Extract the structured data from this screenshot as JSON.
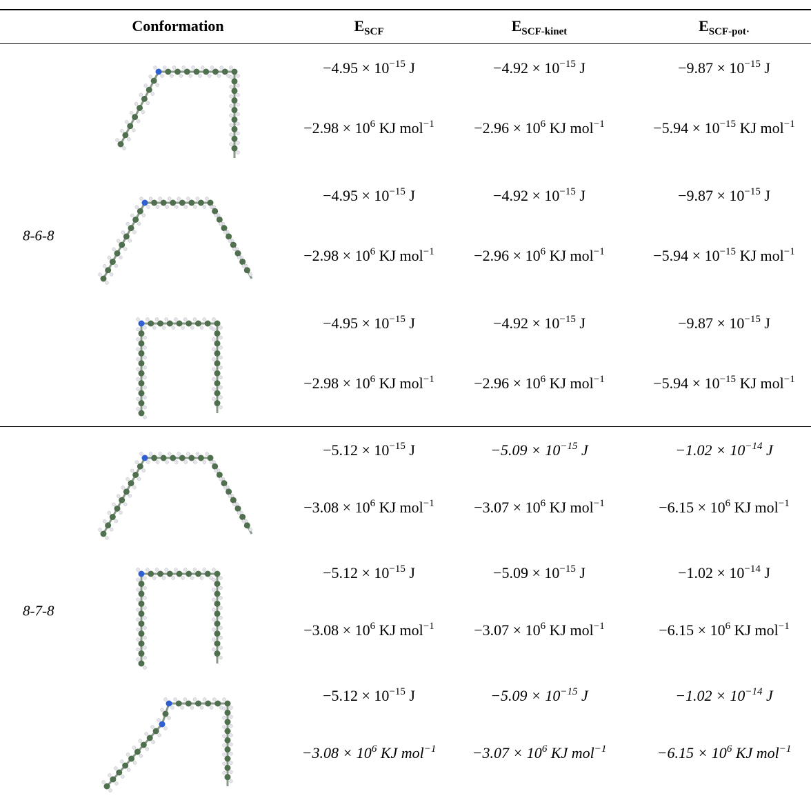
{
  "header": [
    {
      "main": "Conformation"
    },
    {
      "main": "E",
      "sub": "SCF"
    },
    {
      "main": "E",
      "sub": "SCF-kinet"
    },
    {
      "main": "E",
      "sub": "SCF-pot·"
    }
  ],
  "groups": [
    {
      "label": "8-6-8",
      "conformations": [
        {
          "rows": [
            [
              {
                "base": "−4.95 × 10",
                "exp": "−15",
                "unit": "J"
              },
              {
                "base": "−4.92 × 10",
                "exp": "−15",
                "unit": "J"
              },
              {
                "base": "−9.87 × 10",
                "exp": "−15",
                "unit": "J"
              }
            ],
            [
              {
                "base": "−2.98 × 10",
                "exp": "6",
                "unit": "KJ mol",
                "unit_exp": "−1"
              },
              {
                "base": "−2.96 × 10",
                "exp": "6",
                "unit": "KJ mol",
                "unit_exp": "−1"
              },
              {
                "base": "−5.94 × 10",
                "exp": "−15",
                "unit": "KJ mol",
                "unit_exp": "−1"
              }
            ]
          ]
        },
        {
          "rows": [
            [
              {
                "base": "−4.95 × 10",
                "exp": "−15",
                "unit": "J"
              },
              {
                "base": "−4.92 × 10",
                "exp": "−15",
                "unit": "J"
              },
              {
                "base": "−9.87 × 10",
                "exp": "−15",
                "unit": "J"
              }
            ],
            [
              {
                "base": "−2.98 × 10",
                "exp": "6",
                "unit": "KJ mol",
                "unit_exp": "−1"
              },
              {
                "base": "−2.96 × 10",
                "exp": "6",
                "unit": "KJ mol",
                "unit_exp": "−1"
              },
              {
                "base": "−5.94 × 10",
                "exp": "−15",
                "unit": "KJ mol",
                "unit_exp": "−1"
              }
            ]
          ]
        },
        {
          "rows": [
            [
              {
                "base": "−4.95 × 10",
                "exp": "−15",
                "unit": "J"
              },
              {
                "base": "−4.92 × 10",
                "exp": "−15",
                "unit": "J"
              },
              {
                "base": "−9.87 × 10",
                "exp": "−15",
                "unit": "J"
              }
            ],
            [
              {
                "base": "−2.98 × 10",
                "exp": "6",
                "unit": "KJ mol",
                "unit_exp": "−1"
              },
              {
                "base": "−2.96 × 10",
                "exp": "6",
                "unit": "KJ mol",
                "unit_exp": "−1"
              },
              {
                "base": "−5.94 × 10",
                "exp": "−15",
                "unit": "KJ mol",
                "unit_exp": "−1"
              }
            ]
          ]
        }
      ]
    },
    {
      "label": "8-7-8",
      "conformations": [
        {
          "rows": [
            [
              {
                "base": "−5.12 × 10",
                "exp": "−15",
                "unit": "J"
              },
              {
                "base": "−5.09 × 10",
                "exp": "−15",
                "unit": "J",
                "italic": true
              },
              {
                "base": "−1.02 × 10",
                "exp": "−14",
                "unit": "J",
                "italic": true
              }
            ],
            [
              {
                "base": "−3.08 × 10",
                "exp": "6",
                "unit": "KJ mol",
                "unit_exp": "−1"
              },
              {
                "base": "−3.07 × 10",
                "exp": "6",
                "unit": "KJ mol",
                "unit_exp": "−1"
              },
              {
                "base": "−6.15 × 10",
                "exp": "6",
                "unit": "KJ mol",
                "unit_exp": "−1"
              }
            ]
          ]
        },
        {
          "rows": [
            [
              {
                "base": "−5.12 × 10",
                "exp": "−15",
                "unit": "J"
              },
              {
                "base": "−5.09 × 10",
                "exp": "−15",
                "unit": "J"
              },
              {
                "base": "−1.02 × 10",
                "exp": "−14",
                "unit": "J"
              }
            ],
            [
              {
                "base": "−3.08 × 10",
                "exp": "6",
                "unit": "KJ mol",
                "unit_exp": "−1"
              },
              {
                "base": "−3.07 × 10",
                "exp": "6",
                "unit": "KJ mol",
                "unit_exp": "−1"
              },
              {
                "base": "−6.15 × 10",
                "exp": "6",
                "unit": "KJ mol",
                "unit_exp": "−1"
              }
            ]
          ]
        },
        {
          "rows": [
            [
              {
                "base": "−5.12 × 10",
                "exp": "−15",
                "unit": "J"
              },
              {
                "base": "−5.09 × 10",
                "exp": "−15",
                "unit": "J",
                "italic": true
              },
              {
                "base": "−1.02 × 10",
                "exp": "−14",
                "unit": "J",
                "italic": true
              }
            ],
            [
              {
                "base": "−3.08 × 10",
                "exp": "6",
                "unit": "KJ mol",
                "unit_exp": "−1",
                "italic": true
              },
              {
                "base": "−3.07 × 10",
                "exp": "6",
                "unit": "KJ mol",
                "unit_exp": "−1",
                "italic": true
              },
              {
                "base": "−6.15 × 10",
                "exp": "6",
                "unit": "KJ mol",
                "unit_exp": "−1",
                "italic": true
              }
            ]
          ]
        }
      ]
    }
  ]
}
